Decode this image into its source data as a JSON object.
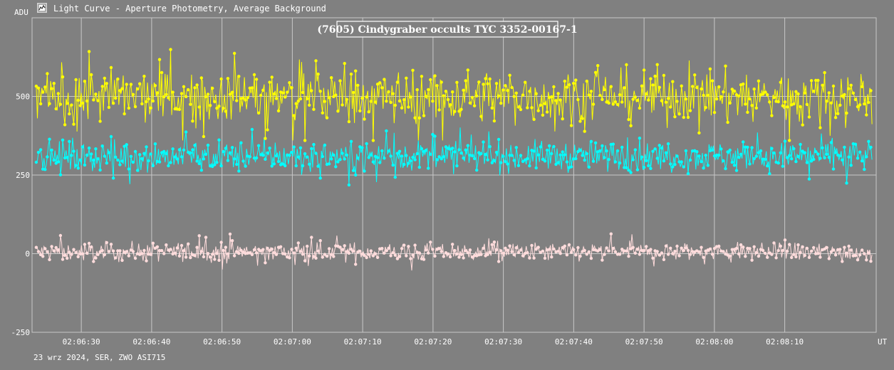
{
  "window": {
    "title": "Light Curve - Aperture Photometry, Average Background",
    "icon": "chart-window-icon"
  },
  "footer": {
    "session_info": "23 wrz 2024, SER, ZWO ASI715"
  },
  "colors": {
    "background": "#808080",
    "grid": "#c8c8c8",
    "text": "#ffffff",
    "target": "#ffff00",
    "comparison": "#00ffff",
    "background_series": "#ffdcdc"
  },
  "chart_data": {
    "type": "line",
    "title": "(7605) Cindygraber occults TYC 3352-00167-1",
    "ylabel": "ADU",
    "xlabel": "UT",
    "ylim": [
      -250,
      750
    ],
    "yticks": [
      -250,
      0,
      250,
      500
    ],
    "xrange": [
      "02:06:23",
      "02:08:23"
    ],
    "xticks": [
      "02:06:30",
      "02:06:40",
      "02:06:50",
      "02:07:00",
      "02:07:10",
      "02:07:20",
      "02:07:30",
      "02:07:40",
      "02:07:50",
      "02:08:00",
      "02:08:10"
    ],
    "grid": true,
    "markers": true,
    "sampling_note": "dense time series; summarised as mean and spread per series",
    "series": [
      {
        "color": "#ffff00",
        "mean": 500,
        "spread": 70,
        "min": 360,
        "max": 720
      },
      {
        "color": "#00ffff",
        "mean": 310,
        "spread": 40,
        "min": 190,
        "max": 420
      },
      {
        "color": "#ffdcdc",
        "mean": 5,
        "spread": 25,
        "min": -90,
        "max": 95
      }
    ]
  }
}
